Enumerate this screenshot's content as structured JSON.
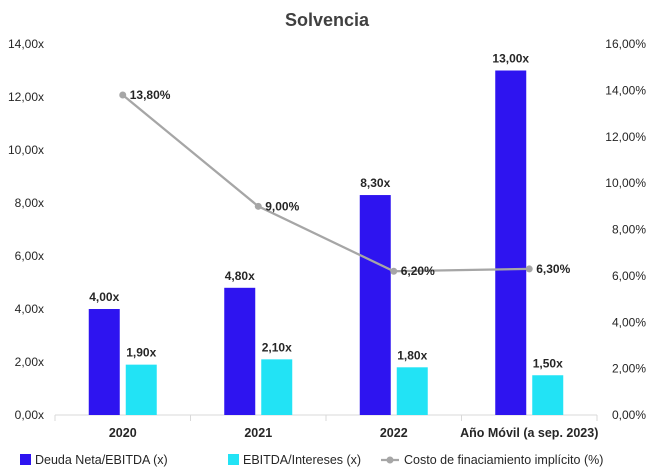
{
  "chart_data": {
    "type": "bar",
    "title": "Solvencia",
    "categories": [
      "2020",
      "2021",
      "2022",
      "Año Móvil (a sep. 2023)"
    ],
    "series": [
      {
        "name": "Deuda Neta/EBITDA (x)",
        "kind": "bar",
        "axis": "left",
        "color": "#2E14F0",
        "values": [
          4.0,
          4.8,
          8.3,
          13.0
        ],
        "labels": [
          "4,00x",
          "4,80x",
          "8,30x",
          "13,00x"
        ]
      },
      {
        "name": "EBITDA/Intereses (x)",
        "kind": "bar",
        "axis": "left",
        "color": "#22E3F5",
        "values": [
          1.9,
          2.1,
          1.8,
          1.5
        ],
        "labels": [
          "1,90x",
          "2,10x",
          "1,80x",
          "1,50x"
        ]
      },
      {
        "name": "Costo de finaciamiento implícito (%)",
        "kind": "line",
        "axis": "right",
        "color": "#A6A6A6",
        "values": [
          13.8,
          9.0,
          6.2,
          6.3
        ],
        "labels": [
          "13,80%",
          "9,00%",
          "6,20%",
          "6,30%"
        ]
      }
    ],
    "left_axis": {
      "ylim": [
        0,
        14
      ],
      "ticks": [
        "0,00x",
        "2,00x",
        "4,00x",
        "6,00x",
        "8,00x",
        "10,00x",
        "12,00x",
        "14,00x"
      ]
    },
    "right_axis": {
      "ylim": [
        0,
        16
      ],
      "ticks": [
        "0,00%",
        "2,00%",
        "4,00%",
        "6,00%",
        "8,00%",
        "10,00%",
        "12,00%",
        "14,00%",
        "16,00%"
      ]
    },
    "grid": false,
    "legend_position": "bottom"
  }
}
